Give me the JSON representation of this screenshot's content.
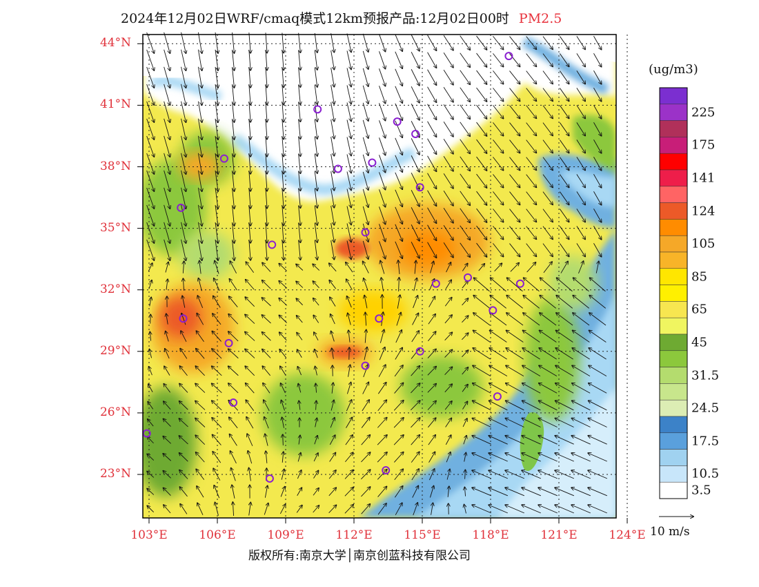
{
  "title": {
    "text": "2024年12月02日WRF/cmaq模式12km预报产品:12月02日00时",
    "pollutant": "PM2.5"
  },
  "lat_labels": [
    "44°N",
    "41°N",
    "38°N",
    "35°N",
    "32°N",
    "29°N",
    "26°N",
    "23°N"
  ],
  "lon_labels": [
    "103°E",
    "106°E",
    "109°E",
    "112°E",
    "115°E",
    "118°E",
    "121°E",
    "124°E"
  ],
  "colorbar": {
    "unit": "(ug/m3)",
    "labels": [
      "225",
      "175",
      "141",
      "124",
      "105",
      "85",
      "65",
      "45",
      "31.5",
      "24.5",
      "17.5",
      "10.5",
      "3.5"
    ],
    "colors": [
      "#7b2fd0",
      "#9b32c8",
      "#b0305a",
      "#c81e78",
      "#ff0000",
      "#ee1e4a",
      "#ff6464",
      "#ec5a28",
      "#ff8c00",
      "#f5a828",
      "#f8b428",
      "#ffe600",
      "#fff000",
      "#f7e650",
      "#f0f560",
      "#6eaa32",
      "#8cc83c",
      "#b4dc6e",
      "#c8e68c",
      "#dcedb4",
      "#3c82c8",
      "#5aa0dc",
      "#a0d2f0",
      "#c8e6fa",
      "#ffffff"
    ]
  },
  "wind_legend": {
    "label": "10 m/s"
  },
  "copyright": "版权所有:南京大学│南京创蓝科技有限公司",
  "stations": [
    {
      "lon": 118.8,
      "lat": 43.4
    },
    {
      "lon": 110.4,
      "lat": 40.8
    },
    {
      "lon": 113.9,
      "lat": 40.2
    },
    {
      "lon": 114.7,
      "lat": 39.6
    },
    {
      "lon": 106.3,
      "lat": 38.4
    },
    {
      "lon": 111.3,
      "lat": 37.9
    },
    {
      "lon": 112.8,
      "lat": 38.2
    },
    {
      "lon": 114.9,
      "lat": 37.0
    },
    {
      "lon": 104.4,
      "lat": 36.0
    },
    {
      "lon": 112.5,
      "lat": 34.8
    },
    {
      "lon": 108.4,
      "lat": 34.2
    },
    {
      "lon": 117.0,
      "lat": 32.6
    },
    {
      "lon": 115.6,
      "lat": 32.3
    },
    {
      "lon": 119.3,
      "lat": 32.3
    },
    {
      "lon": 104.5,
      "lat": 30.6
    },
    {
      "lon": 113.1,
      "lat": 30.6
    },
    {
      "lon": 118.1,
      "lat": 31.0
    },
    {
      "lon": 106.5,
      "lat": 29.4
    },
    {
      "lon": 114.9,
      "lat": 29.0
    },
    {
      "lon": 112.5,
      "lat": 28.3
    },
    {
      "lon": 106.7,
      "lat": 26.5
    },
    {
      "lon": 118.3,
      "lat": 26.8
    },
    {
      "lon": 102.9,
      "lat": 25.0
    },
    {
      "lon": 108.3,
      "lat": 22.8
    },
    {
      "lon": 113.4,
      "lat": 23.2
    }
  ]
}
